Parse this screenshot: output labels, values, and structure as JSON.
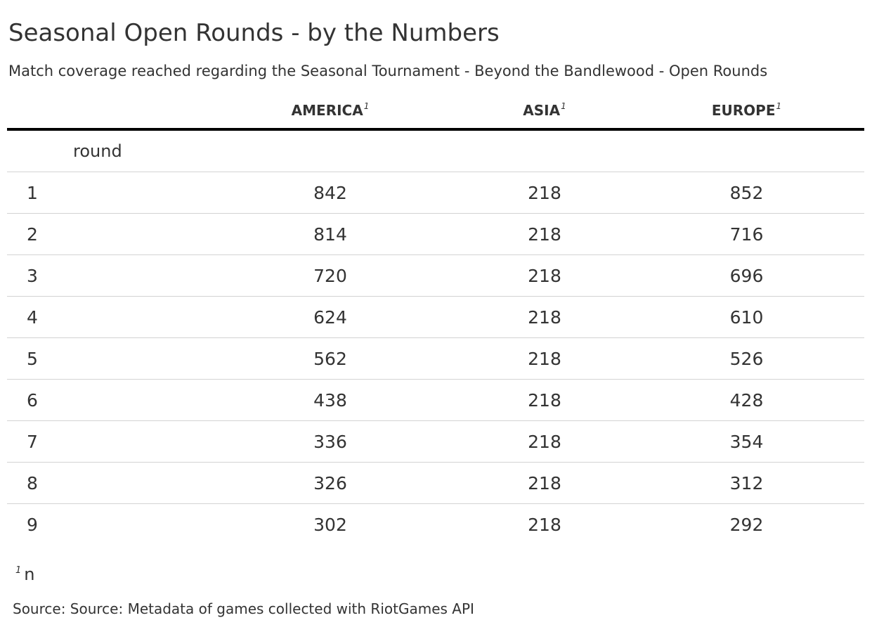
{
  "title": "Seasonal Open Rounds - by the Numbers",
  "subtitle": "Match coverage reached regarding the Seasonal Tournament - Beyond the Bandlewood - Open Rounds",
  "table": {
    "columns": [
      {
        "label": "AMERICA",
        "footnote_mark": "1"
      },
      {
        "label": "ASIA",
        "footnote_mark": "1"
      },
      {
        "label": "EUROPE",
        "footnote_mark": "1"
      }
    ],
    "group_label": "round",
    "rows": [
      {
        "round": "1",
        "america": "842",
        "asia": "218",
        "europe": "852"
      },
      {
        "round": "2",
        "america": "814",
        "asia": "218",
        "europe": "716"
      },
      {
        "round": "3",
        "america": "720",
        "asia": "218",
        "europe": "696"
      },
      {
        "round": "4",
        "america": "624",
        "asia": "218",
        "europe": "610"
      },
      {
        "round": "5",
        "america": "562",
        "asia": "218",
        "europe": "526"
      },
      {
        "round": "6",
        "america": "438",
        "asia": "218",
        "europe": "428"
      },
      {
        "round": "7",
        "america": "336",
        "asia": "218",
        "europe": "354"
      },
      {
        "round": "8",
        "america": "326",
        "asia": "218",
        "europe": "312"
      },
      {
        "round": "9",
        "america": "302",
        "asia": "218",
        "europe": "292"
      }
    ]
  },
  "footnote": {
    "mark": "1",
    "text": "n"
  },
  "source": "Source: Source: Metadata of games collected with RiotGames API",
  "colors": {
    "text": "#333333",
    "header_rule": "#000000",
    "row_rule": "#d3d3d3",
    "background": "#ffffff"
  }
}
